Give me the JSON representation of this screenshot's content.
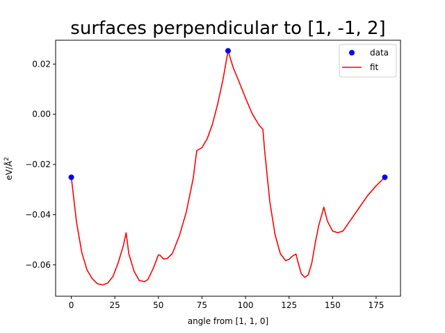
{
  "chart_data": {
    "type": "line",
    "title": "surfaces perpendicular to [1, -1, 2]",
    "xlabel": "angle from [1, 1, 0]",
    "ylabel_main": "eV/Å",
    "ylabel_sup": "2",
    "xlim": [
      -9,
      189
    ],
    "ylim": [
      -0.0725,
      0.0295
    ],
    "xticks": [
      0,
      25,
      50,
      75,
      100,
      125,
      150,
      175
    ],
    "xtick_labels": [
      "0",
      "25",
      "50",
      "75",
      "100",
      "125",
      "150",
      "175"
    ],
    "yticks": [
      0.02,
      0.0,
      -0.02,
      -0.04,
      -0.06
    ],
    "ytick_labels": [
      "0.02",
      "0.00",
      "−0.02",
      "−0.04",
      "−0.06"
    ],
    "grid": false,
    "legend_placement": "top-right",
    "series": [
      {
        "name": "data",
        "kind": "scatter",
        "color": "#0000ff",
        "x": [
          0,
          90,
          180
        ],
        "y": [
          -0.0251,
          0.0253,
          -0.0251
        ]
      },
      {
        "name": "fit",
        "kind": "line",
        "color": "#ff0000",
        "x": [
          0,
          3,
          6,
          9,
          12,
          15,
          18,
          21,
          24,
          27,
          30,
          31.5,
          33,
          36,
          39,
          42,
          44,
          47,
          50,
          51,
          53,
          55,
          58,
          62,
          66,
          70,
          72,
          75,
          78,
          81,
          84,
          87,
          90,
          93,
          96,
          100,
          104,
          108,
          110,
          111,
          114,
          117,
          120,
          123,
          125,
          127,
          129,
          130,
          132,
          134,
          136,
          138,
          140,
          142,
          145,
          147,
          150,
          153,
          156,
          160,
          165,
          170,
          175,
          180
        ],
        "y": [
          -0.0251,
          -0.043,
          -0.055,
          -0.062,
          -0.0655,
          -0.0675,
          -0.068,
          -0.0672,
          -0.0645,
          -0.059,
          -0.052,
          -0.0472,
          -0.0555,
          -0.0625,
          -0.0662,
          -0.0667,
          -0.0658,
          -0.0615,
          -0.056,
          -0.0562,
          -0.0577,
          -0.0575,
          -0.0555,
          -0.0485,
          -0.039,
          -0.0255,
          -0.0145,
          -0.0133,
          -0.0098,
          -0.004,
          0.004,
          0.0135,
          0.0253,
          0.0185,
          0.0135,
          0.0065,
          0.0,
          -0.0045,
          -0.006,
          -0.0145,
          -0.035,
          -0.048,
          -0.0555,
          -0.0583,
          -0.0578,
          -0.0565,
          -0.0557,
          -0.0585,
          -0.0635,
          -0.065,
          -0.064,
          -0.0595,
          -0.0515,
          -0.0445,
          -0.037,
          -0.0425,
          -0.0465,
          -0.0472,
          -0.0465,
          -0.0425,
          -0.0375,
          -0.0325,
          -0.0285,
          -0.0251
        ]
      }
    ]
  }
}
